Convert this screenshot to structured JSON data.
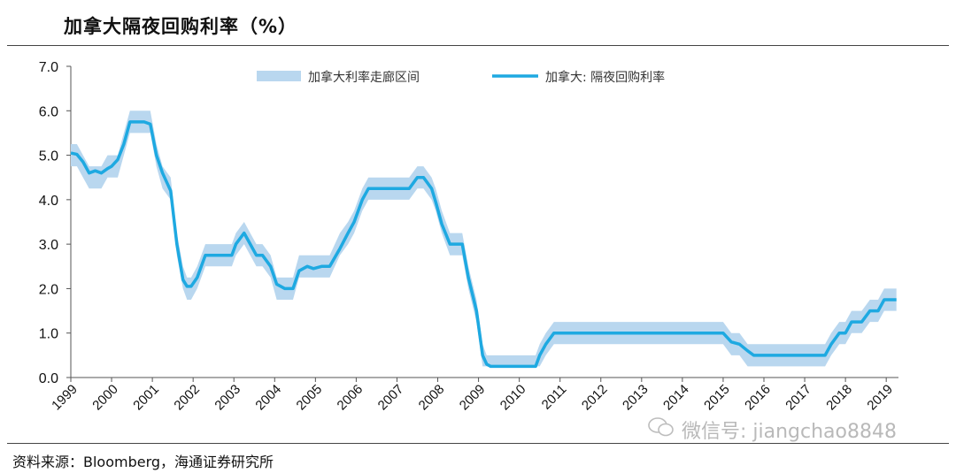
{
  "title": "加拿大隔夜回购利率（%）",
  "source": "资料来源：Bloomberg，海通证券研究所",
  "watermark": "微信号: jiangchao8848",
  "colors": {
    "line": "#1ea9e1",
    "band": "#b9d7ef",
    "axis": "#555555"
  },
  "chart_data": {
    "type": "line",
    "title": "加拿大隔夜回购利率（%）",
    "ylim": [
      0,
      7
    ],
    "xlim": [
      1999,
      2019.3
    ],
    "y_ticks": [
      "0.0",
      "1.0",
      "2.0",
      "3.0",
      "4.0",
      "5.0",
      "6.0",
      "7.0"
    ],
    "x_ticks": [
      "1999",
      "2000",
      "2001",
      "2002",
      "2003",
      "2004",
      "2005",
      "2006",
      "2007",
      "2008",
      "2009",
      "2010",
      "2011",
      "2012",
      "2013",
      "2014",
      "2015",
      "2016",
      "2017",
      "2018",
      "2019"
    ],
    "legend": {
      "position": "top",
      "band_label": "加拿大利率走廊区间",
      "line_label": "加拿大: 隔夜回购利率"
    },
    "series": [
      {
        "name": "加拿大: 隔夜回购利率",
        "kind": "line",
        "x": [
          1999.0,
          1999.15,
          1999.3,
          1999.45,
          1999.6,
          1999.75,
          1999.9,
          2000.0,
          2000.15,
          2000.3,
          2000.45,
          2000.6,
          2000.8,
          2000.95,
          2001.1,
          2001.25,
          2001.45,
          2001.6,
          2001.75,
          2001.85,
          2001.95,
          2002.1,
          2002.3,
          2002.45,
          2002.6,
          2002.8,
          2002.95,
          2003.05,
          2003.25,
          2003.4,
          2003.55,
          2003.7,
          2003.9,
          2004.05,
          2004.25,
          2004.45,
          2004.6,
          2004.8,
          2004.95,
          2005.15,
          2005.35,
          2005.6,
          2005.8,
          2005.95,
          2006.15,
          2006.3,
          2006.5,
          2006.7,
          2007.0,
          2007.3,
          2007.5,
          2007.65,
          2007.85,
          2007.95,
          2008.1,
          2008.3,
          2008.45,
          2008.6,
          2008.75,
          2008.95,
          2009.1,
          2009.2,
          2009.3,
          2010.0,
          2010.4,
          2010.5,
          2010.65,
          2010.85,
          2011.5,
          2012.5,
          2013.5,
          2014.5,
          2015.0,
          2015.2,
          2015.4,
          2015.6,
          2015.75,
          2016.0,
          2016.5,
          2017.0,
          2017.5,
          2017.65,
          2017.85,
          2018.0,
          2018.15,
          2018.4,
          2018.6,
          2018.8,
          2018.95,
          2019.1,
          2019.25
        ],
        "values": [
          5.05,
          5.02,
          4.85,
          4.6,
          4.65,
          4.6,
          4.7,
          4.75,
          4.9,
          5.25,
          5.75,
          5.75,
          5.75,
          5.7,
          5.0,
          4.6,
          4.2,
          3.0,
          2.2,
          2.05,
          2.05,
          2.25,
          2.75,
          2.75,
          2.75,
          2.75,
          2.75,
          3.0,
          3.25,
          3.0,
          2.75,
          2.75,
          2.5,
          2.1,
          2.0,
          2.0,
          2.4,
          2.5,
          2.45,
          2.5,
          2.5,
          2.9,
          3.25,
          3.5,
          4.0,
          4.25,
          4.25,
          4.25,
          4.25,
          4.25,
          4.5,
          4.5,
          4.25,
          3.95,
          3.45,
          3.0,
          3.0,
          3.0,
          2.25,
          1.5,
          0.5,
          0.3,
          0.25,
          0.25,
          0.25,
          0.5,
          0.75,
          1.0,
          1.0,
          1.0,
          1.0,
          1.0,
          1.0,
          0.8,
          0.75,
          0.6,
          0.5,
          0.5,
          0.5,
          0.5,
          0.5,
          0.75,
          1.0,
          1.0,
          1.25,
          1.25,
          1.5,
          1.5,
          1.75,
          1.75,
          1.75
        ]
      },
      {
        "name": "加拿大利率走廊区间",
        "kind": "band",
        "x": [
          1999.0,
          1999.15,
          1999.3,
          1999.45,
          1999.6,
          1999.75,
          1999.9,
          2000.0,
          2000.15,
          2000.3,
          2000.45,
          2000.6,
          2000.8,
          2000.95,
          2001.1,
          2001.25,
          2001.45,
          2001.6,
          2001.75,
          2001.85,
          2001.95,
          2002.1,
          2002.3,
          2002.45,
          2002.6,
          2002.8,
          2002.95,
          2003.05,
          2003.25,
          2003.4,
          2003.55,
          2003.7,
          2003.9,
          2004.05,
          2004.25,
          2004.45,
          2004.6,
          2004.8,
          2004.95,
          2005.15,
          2005.35,
          2005.6,
          2005.8,
          2005.95,
          2006.15,
          2006.3,
          2006.5,
          2006.7,
          2007.0,
          2007.3,
          2007.5,
          2007.65,
          2007.85,
          2007.95,
          2008.1,
          2008.3,
          2008.45,
          2008.6,
          2008.75,
          2008.95,
          2009.1,
          2009.2,
          2009.3,
          2010.0,
          2010.4,
          2010.5,
          2010.65,
          2010.85,
          2011.5,
          2012.5,
          2013.5,
          2014.5,
          2015.0,
          2015.2,
          2015.4,
          2015.6,
          2015.75,
          2016.0,
          2016.5,
          2017.0,
          2017.5,
          2017.65,
          2017.85,
          2018.0,
          2018.15,
          2018.4,
          2018.6,
          2018.8,
          2018.95,
          2019.1,
          2019.25
        ],
        "upper": [
          5.25,
          5.25,
          5.0,
          4.75,
          4.75,
          4.75,
          5.0,
          5.0,
          5.0,
          5.5,
          6.0,
          6.0,
          6.0,
          6.0,
          5.25,
          4.75,
          4.5,
          3.25,
          2.5,
          2.25,
          2.25,
          2.5,
          3.0,
          3.0,
          3.0,
          3.0,
          3.0,
          3.25,
          3.5,
          3.25,
          3.0,
          3.0,
          2.75,
          2.25,
          2.25,
          2.25,
          2.75,
          2.75,
          2.75,
          2.75,
          2.75,
          3.25,
          3.5,
          3.75,
          4.25,
          4.5,
          4.5,
          4.5,
          4.5,
          4.5,
          4.75,
          4.75,
          4.5,
          4.25,
          3.75,
          3.25,
          3.25,
          3.25,
          2.5,
          1.75,
          0.75,
          0.5,
          0.5,
          0.5,
          0.5,
          0.75,
          1.0,
          1.25,
          1.25,
          1.25,
          1.25,
          1.25,
          1.25,
          1.0,
          1.0,
          0.75,
          0.75,
          0.75,
          0.75,
          0.75,
          0.75,
          1.0,
          1.25,
          1.25,
          1.5,
          1.5,
          1.75,
          1.75,
          2.0,
          2.0,
          2.0
        ],
        "lower": [
          4.75,
          4.75,
          4.5,
          4.25,
          4.25,
          4.25,
          4.5,
          4.5,
          4.5,
          5.0,
          5.5,
          5.5,
          5.5,
          5.5,
          4.75,
          4.25,
          4.0,
          2.75,
          2.0,
          1.75,
          1.75,
          2.0,
          2.5,
          2.5,
          2.5,
          2.5,
          2.5,
          2.75,
          3.0,
          2.75,
          2.5,
          2.5,
          2.25,
          1.75,
          1.75,
          1.75,
          2.25,
          2.25,
          2.25,
          2.25,
          2.25,
          2.75,
          3.0,
          3.25,
          3.75,
          4.0,
          4.0,
          4.0,
          4.0,
          4.0,
          4.25,
          4.25,
          4.0,
          3.75,
          3.25,
          2.75,
          2.75,
          2.75,
          2.0,
          1.25,
          0.25,
          0.25,
          0.25,
          0.25,
          0.25,
          0.25,
          0.5,
          0.75,
          0.75,
          0.75,
          0.75,
          0.75,
          0.75,
          0.5,
          0.5,
          0.25,
          0.25,
          0.25,
          0.25,
          0.25,
          0.25,
          0.5,
          0.75,
          0.75,
          1.0,
          1.0,
          1.25,
          1.25,
          1.5,
          1.5,
          1.5
        ]
      }
    ]
  }
}
